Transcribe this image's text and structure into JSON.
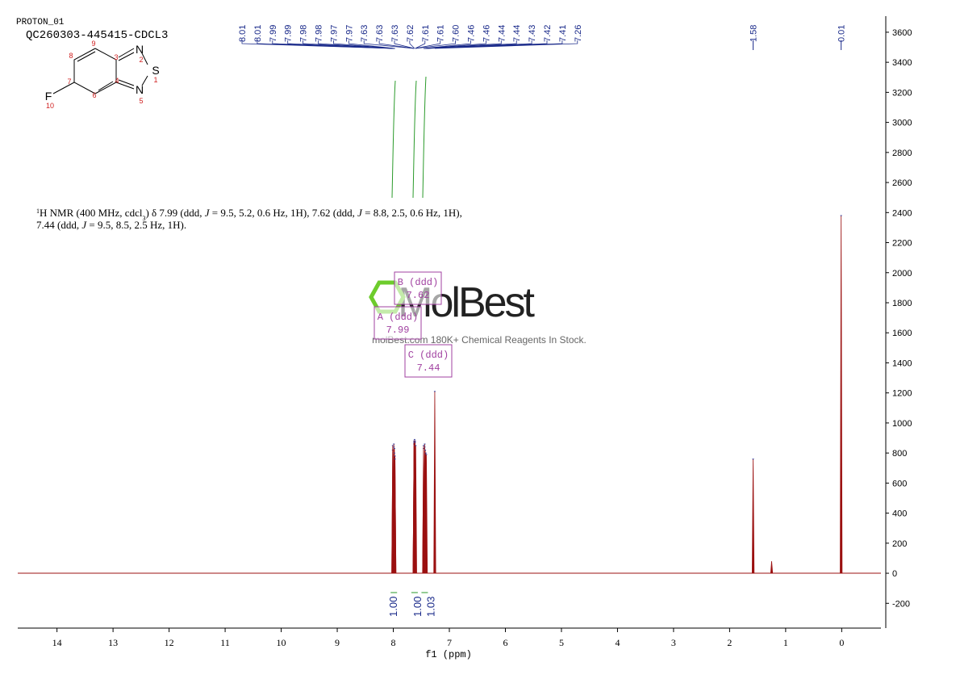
{
  "chart_data": {
    "type": "spectrum",
    "title": "PROTON_01",
    "subtitle": "QC260303-445415-CDCL3",
    "description": [
      [
        "1",
        "H NMR (400 MHz, cdcl",
        "3",
        ") δ 7.99 (ddd, ",
        "J",
        " = 9.5, 5.2, 0.6 Hz, 1H), 7.62 (ddd, ",
        "J",
        " = 8.8, 2.5, 0.6 Hz, 1H),"
      ],
      [
        "7.44 (ddd, ",
        "J",
        " = 9.5, 8.5, 2.5 Hz, 1H)."
      ]
    ],
    "x_label": "f1 (ppm)",
    "color": "#9b1010",
    "x": [
      8.01,
      8.01,
      7.99,
      7.99,
      7.98,
      7.98,
      7.97,
      7.97,
      7.63,
      7.63,
      7.63,
      7.62,
      7.61,
      7.61,
      7.6,
      7.46,
      7.46,
      7.44,
      7.44,
      7.43,
      7.42,
      7.41,
      7.26,
      1.58,
      0.01,
      1.25
    ],
    "x_labels": [
      "8.01",
      "8.01",
      "7.99",
      "7.99",
      "7.98",
      "7.98",
      "7.97",
      "7.97",
      "7.63",
      "7.63",
      "7.63",
      "7.62",
      "7.61",
      "7.61",
      "7.60",
      "7.46",
      "7.46",
      "7.44",
      "7.44",
      "7.43",
      "7.42",
      "7.41",
      "7.26",
      "1.58",
      "0.01",
      null
    ],
    "values": [
      820,
      850,
      860,
      840,
      830,
      800,
      780,
      760,
      860,
      880,
      870,
      890,
      880,
      870,
      850,
      830,
      850,
      860,
      840,
      820,
      800,
      790,
      1210,
      760,
      2380,
      80
    ],
    "xlim": [
      14.7,
      -0.7
    ],
    "xticks": [
      14,
      13,
      12,
      11,
      10,
      9,
      8,
      7,
      6,
      5,
      4,
      3,
      2,
      1,
      0
    ],
    "ylim": [
      -365,
      3707
    ],
    "yticks": [
      -200,
      0,
      200,
      400,
      600,
      800,
      1000,
      1200,
      1400,
      1600,
      1800,
      2000,
      2200,
      2400,
      2600,
      2800,
      3000,
      3200,
      3400,
      3600
    ],
    "integrals": {
      "x": [
        7.99,
        7.62,
        7.44
      ],
      "labels": [
        "1.00",
        "1.00",
        "1.03"
      ]
    },
    "multiplets": [
      {
        "name": "B (ddd)",
        "shift": "7.62",
        "x": 7.62
      },
      {
        "name": "A (ddd)",
        "shift": "7.99",
        "x": 7.99
      },
      {
        "name": "C (ddd)",
        "shift": "7.44",
        "x": 7.44
      }
    ],
    "molecule": {
      "atoms": [
        "N",
        "S",
        "N",
        "F"
      ],
      "numbers": [
        "1",
        "2",
        "3",
        "4",
        "5",
        "6",
        "7",
        "8",
        "9",
        "10"
      ]
    },
    "watermark": {
      "brand": "MolBest",
      "tagline": "molBest.com 180K+ Chemical Reagents In Stock."
    }
  }
}
